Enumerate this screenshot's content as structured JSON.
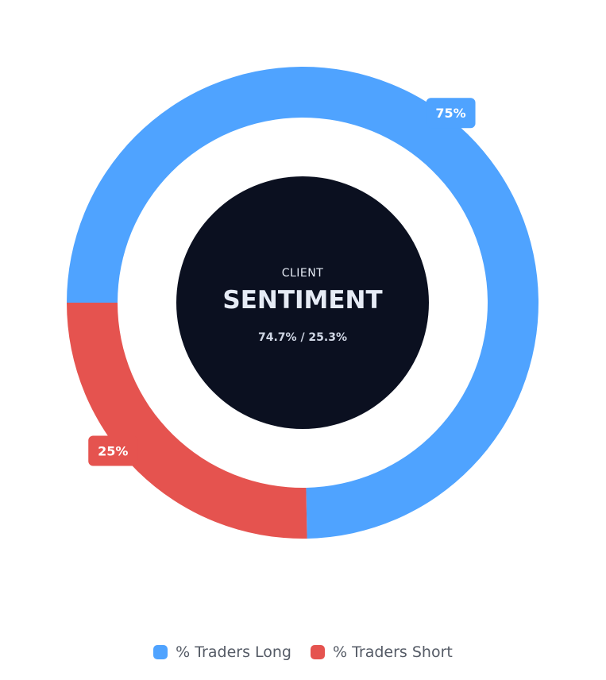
{
  "chart_data": {
    "type": "pie",
    "variant": "donut",
    "center": {
      "small_label": "CLIENT",
      "big_label": "SENTIMENT",
      "ratio_label": "74.7% / 25.3%"
    },
    "series": [
      {
        "name": "% Traders Long",
        "value": 74.7,
        "label": "75%",
        "color": "#4fa3ff"
      },
      {
        "name": "% Traders Short",
        "value": 25.3,
        "label": "25%",
        "color": "#e5534f"
      }
    ],
    "center_color": "#0b1020",
    "legend_position": "bottom"
  }
}
